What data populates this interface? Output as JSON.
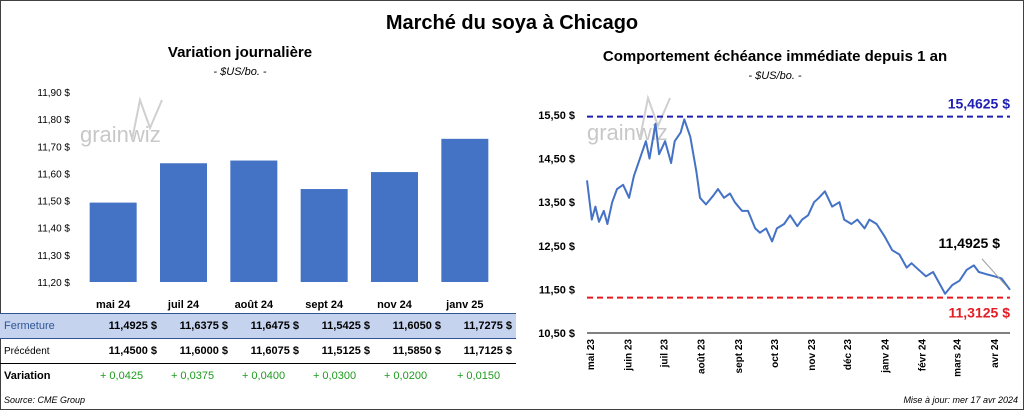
{
  "title": "Marché du soya à Chicago",
  "left_chart": {
    "title": "Variation journalière",
    "unit": "- $US/bo. -",
    "watermark": "grainwiz"
  },
  "right_chart": {
    "title": "Comportement échéance immédiate depuis 1 an",
    "unit": "- $US/bo. -",
    "watermark": "grainwiz"
  },
  "table": {
    "rows": [
      {
        "label": "Fermeture",
        "values": [
          "11,4925  $",
          "11,6375  $",
          "11,6475  $",
          "11,5425  $",
          "11,6050  $",
          "11,7275  $"
        ]
      },
      {
        "label": "Précédent",
        "values": [
          "11,4500  $",
          "11,6000  $",
          "11,6075  $",
          "11,5125  $",
          "11,5850  $",
          "11,7125  $"
        ]
      },
      {
        "label": "Variation",
        "values": [
          "+ 0,0425",
          "+ 0,0375",
          "+ 0,0400",
          "+ 0,0300",
          "+ 0,0200",
          "+ 0,0150"
        ]
      }
    ]
  },
  "footer": {
    "source": "Source: CME Group",
    "updated": "Mise à jour: mer 17 avr 2024"
  },
  "colors": {
    "bar": "#4472c4",
    "line": "#4472c4",
    "high_line": "#1f1fb4",
    "low_line": "#e31b23",
    "variation": "#1e9b1e"
  },
  "chart_data": [
    {
      "type": "bar",
      "categories": [
        "mai 24",
        "juil 24",
        "août 24",
        "sept 24",
        "nov 24",
        "janv 25"
      ],
      "values": [
        11.4925,
        11.6375,
        11.6475,
        11.5425,
        11.605,
        11.7275
      ],
      "yticks": [
        "11,20 $",
        "11,30 $",
        "11,40 $",
        "11,50 $",
        "11,60 $",
        "11,70 $",
        "11,80 $",
        "11,90 $"
      ],
      "ylim": [
        11.2,
        11.9
      ]
    },
    {
      "type": "line",
      "xticks": [
        "mai 23",
        "juin 23",
        "juil 23",
        "août 23",
        "sept 23",
        "oct 23",
        "nov 23",
        "déc 23",
        "janv 24",
        "févr 24",
        "mars 24",
        "avr 24"
      ],
      "yticks": [
        "10,50 $",
        "11,50 $",
        "12,50 $",
        "13,50 $",
        "14,50 $",
        "15,50 $"
      ],
      "ylim": [
        10.5,
        15.5
      ],
      "x_range": [
        "2023-05-01",
        "2024-04-17"
      ],
      "reference_lines": [
        {
          "label": "15,4625 $",
          "value": 15.4625,
          "kind": "high"
        },
        {
          "label": "11,3125 $",
          "value": 11.3125,
          "kind": "low"
        }
      ],
      "current_label": "11,4925 $",
      "series": [
        {
          "x": [
            "2023-05-01",
            "2023-05-05",
            "2023-05-08",
            "2023-05-11",
            "2023-05-15",
            "2023-05-18",
            "2023-05-22",
            "2023-05-26",
            "2023-05-31",
            "2023-06-05",
            "2023-06-09",
            "2023-06-14",
            "2023-06-19",
            "2023-06-22",
            "2023-06-27",
            "2023-06-30",
            "2023-07-05",
            "2023-07-10",
            "2023-07-13",
            "2023-07-18",
            "2023-07-21",
            "2023-07-26",
            "2023-07-31",
            "2023-08-03",
            "2023-08-08",
            "2023-08-14",
            "2023-08-18",
            "2023-08-23",
            "2023-08-28",
            "2023-09-01",
            "2023-09-07",
            "2023-09-12",
            "2023-09-18",
            "2023-09-22",
            "2023-09-27",
            "2023-10-02",
            "2023-10-06",
            "2023-10-12",
            "2023-10-17",
            "2023-10-23",
            "2023-10-27",
            "2023-11-01",
            "2023-11-06",
            "2023-11-10",
            "2023-11-15",
            "2023-11-21",
            "2023-11-27",
            "2023-12-01",
            "2023-12-07",
            "2023-12-12",
            "2023-12-18",
            "2023-12-22",
            "2023-12-28",
            "2024-01-04",
            "2024-01-10",
            "2024-01-16",
            "2024-01-22",
            "2024-01-26",
            "2024-02-01",
            "2024-02-07",
            "2024-02-13",
            "2024-02-19",
            "2024-02-23",
            "2024-02-29",
            "2024-03-06",
            "2024-03-12",
            "2024-03-18",
            "2024-03-22",
            "2024-03-28",
            "2024-04-04",
            "2024-04-10",
            "2024-04-17"
          ],
          "y": [
            14.0,
            13.1,
            13.4,
            13.05,
            13.3,
            13.0,
            13.5,
            13.8,
            13.9,
            13.6,
            14.1,
            14.5,
            14.9,
            14.5,
            15.3,
            14.6,
            14.9,
            14.4,
            14.9,
            15.1,
            15.4,
            15.0,
            14.2,
            13.6,
            13.45,
            13.65,
            13.8,
            13.6,
            13.7,
            13.5,
            13.3,
            13.3,
            12.9,
            12.8,
            12.9,
            12.6,
            12.9,
            13.0,
            13.2,
            12.95,
            13.1,
            13.2,
            13.5,
            13.6,
            13.75,
            13.4,
            13.5,
            13.1,
            13.0,
            13.1,
            12.9,
            13.1,
            13.0,
            12.7,
            12.4,
            12.3,
            12.0,
            12.1,
            11.95,
            11.8,
            11.9,
            11.6,
            11.4,
            11.6,
            11.7,
            11.95,
            12.05,
            11.9,
            11.85,
            11.8,
            11.75,
            11.49
          ]
        }
      ]
    }
  ]
}
